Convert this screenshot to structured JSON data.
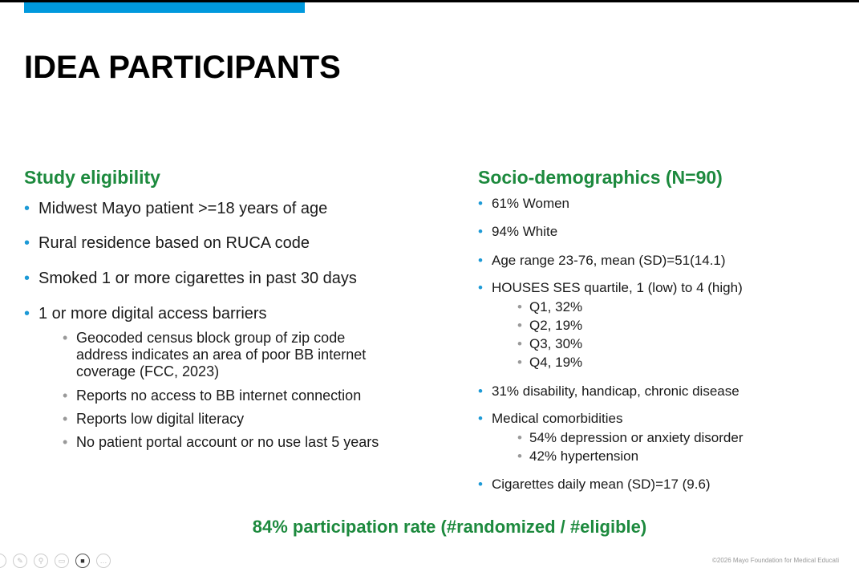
{
  "title": "IDEA PARTICIPANTS",
  "left": {
    "heading": "Study eligibility",
    "items": [
      "Midwest Mayo patient >=18 years of age",
      "Rural residence based on RUCA code",
      "Smoked 1 or more cigarettes in past 30 days",
      "1 or more digital access barriers"
    ],
    "subitems": [
      "Geocoded census block group of zip code address indicates an area of poor BB internet coverage (FCC, 2023)",
      "Reports no access to BB internet connection",
      "Reports low digital literacy",
      "No patient portal account or no use last 5 years"
    ]
  },
  "right": {
    "heading": "Socio-demographics (N=90)",
    "items": [
      "61% Women",
      "94% White",
      "Age range 23-76, mean (SD)=51(14.1)",
      "HOUSES SES quartile, 1 (low) to 4 (high)",
      "31% disability, handicap, chronic disease",
      "Medical comorbidities",
      "Cigarettes daily mean (SD)=17 (9.6)"
    ],
    "ses": [
      "Q1, 32%",
      "Q2, 19%",
      "Q3, 30%",
      "Q4, 19%"
    ],
    "comorbid": [
      "54% depression or anxiety disorder",
      "42% hypertension"
    ]
  },
  "bottom": "84% participation rate (#randomized / #eligible)",
  "footer": "©2026 Mayo Foundation for Medical Educati",
  "colors": {
    "accent": "#0099dd",
    "heading": "#1d8a3e"
  }
}
